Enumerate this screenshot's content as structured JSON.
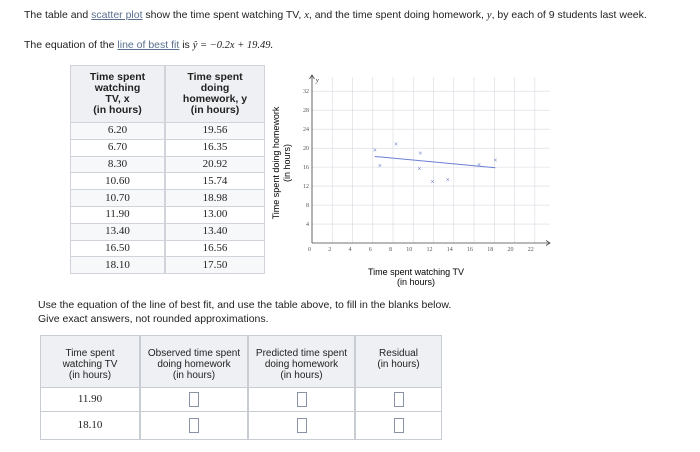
{
  "intro": [
    "The table and ",
    "scatter plot",
    " show the time spent watching TV, ",
    "x",
    ", and the time spent doing homework, ",
    "y",
    ", by each of 9 students last week."
  ],
  "equation_line": [
    "The equation of the ",
    "line of best fit",
    " is ",
    "ŷ = −0.2x + 19.49."
  ],
  "data_table": {
    "header": [
      [
        "Time spent",
        "watching",
        "TV, x",
        "(in hours)"
      ],
      [
        "Time spent",
        "doing",
        "homework, y",
        "(in hours)"
      ]
    ],
    "rows": [
      [
        "6.20",
        "19.56"
      ],
      [
        "6.70",
        "16.35"
      ],
      [
        "8.30",
        "20.92"
      ],
      [
        "10.60",
        "15.74"
      ],
      [
        "10.70",
        "18.98"
      ],
      [
        "11.90",
        "13.00"
      ],
      [
        "13.40",
        "13.40"
      ],
      [
        "16.50",
        "16.56"
      ],
      [
        "18.10",
        "17.50"
      ]
    ]
  },
  "chart_data": {
    "type": "scatter",
    "x_label": [
      "Time spent watching TV",
      "(in hours)"
    ],
    "y_label": [
      "Time spent doing homework",
      "(in hours)"
    ],
    "y_letter": "y",
    "x": [
      6.2,
      6.7,
      8.3,
      10.6,
      10.7,
      11.9,
      13.4,
      16.5,
      18.1
    ],
    "values": [
      19.56,
      16.35,
      20.92,
      15.74,
      18.98,
      13.0,
      13.4,
      16.56,
      17.5
    ],
    "marker": "×",
    "color": "#4a5fc1",
    "fit": {
      "slope": -0.2,
      "intercept": 19.49,
      "color": "#6b7fd6"
    },
    "xlim": [
      0,
      23.5
    ],
    "ylim": [
      0,
      35
    ],
    "xticks": [
      0,
      2,
      4,
      6,
      8,
      10,
      12,
      14,
      16,
      18,
      20,
      22
    ],
    "yticks": [
      4,
      8,
      12,
      16,
      20,
      24,
      28,
      32
    ],
    "grid": true
  },
  "instructions": [
    "Use the equation of the line of best fit, and use the table above, to fill in the blanks below.",
    "Give exact answers, not rounded approximations."
  ],
  "answer_table": {
    "header": [
      [
        "Time spent",
        "watching TV",
        "(in hours)"
      ],
      [
        "Observed time spent",
        "doing homework",
        "(in hours)"
      ],
      [
        "Predicted time spent",
        "doing homework",
        "(in hours)"
      ],
      [
        "Residual",
        "(in hours)"
      ]
    ],
    "rows": [
      [
        "11.90"
      ],
      [
        "18.10"
      ]
    ]
  }
}
